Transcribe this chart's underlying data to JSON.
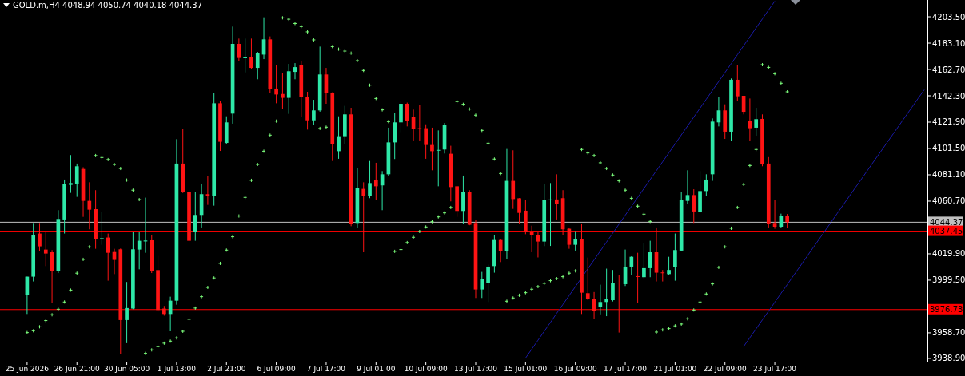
{
  "chart_data": {
    "type": "candlestick",
    "title": "GOLD.m,H4  4048.94 4050.74 4040.18 4044.37",
    "categories": [
      "25 Jun 2026",
      null,
      null,
      null,
      null,
      null,
      null,
      null,
      "26 Jun 21:00",
      null,
      null,
      null,
      null,
      null,
      null,
      null,
      "30 Jun 05:00",
      null,
      null,
      null,
      null,
      null,
      null,
      null,
      "1 Jul 13:00",
      null,
      null,
      null,
      null,
      null,
      null,
      null,
      "2 Jul 21:00",
      null,
      null,
      null,
      null,
      null,
      null,
      null,
      "6 Jul 09:00",
      null,
      null,
      null,
      null,
      null,
      null,
      null,
      "7 Jul 17:00",
      null,
      null,
      null,
      null,
      null,
      null,
      null,
      "9 Jul 01:00",
      null,
      null,
      null,
      null,
      null,
      null,
      null,
      "10 Jul 09:00",
      null,
      null,
      null,
      null,
      null,
      null,
      null,
      "13 Jul 17:00",
      null,
      null,
      null,
      null,
      null,
      null,
      null,
      "15 Jul 01:00",
      null,
      null,
      null,
      null,
      null,
      null,
      null,
      "16 Jul 09:00",
      null,
      null,
      null,
      null,
      null,
      null,
      null,
      "17 Jul 17:00",
      null,
      null,
      null,
      null,
      null,
      null,
      null,
      "21 Jul 01:00",
      null,
      null,
      null,
      null,
      null,
      null,
      null,
      "22 Jul 09:00",
      null,
      null,
      null,
      null,
      null,
      null,
      null,
      "23 Jul 17:00",
      null,
      null,
      null,
      null,
      null,
      null,
      null,
      null,
      null,
      null,
      null,
      null,
      null,
      null,
      null,
      null,
      null,
      null,
      null,
      null,
      null,
      null,
      null,
      null
    ],
    "ylim": [
      3936.4,
      4216.5
    ],
    "yticks": [
      {
        "value": 3938.9,
        "label": "3938.90"
      },
      {
        "value": 3958.7,
        "label": "3958.70"
      },
      {
        "value": 3999.5,
        "label": "3999.50"
      },
      {
        "value": 4019.9,
        "label": "4019.90"
      },
      {
        "value": 4060.7,
        "label": "4060.70"
      },
      {
        "value": 4081.1,
        "label": "4081.10"
      },
      {
        "value": 4101.5,
        "label": "4101.50"
      },
      {
        "value": 4121.9,
        "label": "4121.90"
      },
      {
        "value": 4142.3,
        "label": "4142.30"
      },
      {
        "value": 4162.7,
        "label": "4162.70"
      },
      {
        "value": 4183.1,
        "label": "4183.10"
      },
      {
        "value": 4203.5,
        "label": "4203.50"
      }
    ],
    "grid": false,
    "ref_lines": [
      {
        "axis": "y",
        "value": 4044.37,
        "label": "4044.37",
        "color": "#c0c0c0"
      },
      {
        "axis": "y",
        "value": 4037.45,
        "label": "4037.45",
        "color": "#ff0000"
      },
      {
        "axis": "y",
        "value": 3976.73,
        "label": "3976.73",
        "color": "#ff0000"
      }
    ],
    "series": [
      {
        "colors": [
          "#2ee8a8",
          "#2ee8a8",
          "#ff1414",
          "#ff1414",
          "#ff1414",
          "#2ee8a8",
          "#2ee8a8",
          "#2ee8a8",
          "#2ee8a8",
          "#ff1414",
          "#ff1414",
          "#ff1414",
          "#2ee8a8",
          "#ff1414",
          "#ff1414",
          "#ff1414",
          "#2ee8a8",
          "#2ee8a8",
          "#2ee8a8",
          "#2ee8a8",
          "#ff1414",
          "#ff1414",
          "#ff1414",
          "#2ee8a8",
          "#2ee8a8",
          "#ff1414",
          "#ff1414",
          "#2ee8a8",
          "#2ee8a8",
          "#ff1414",
          "#2ee8a8",
          "#ff1414",
          "#2ee8a8",
          "#2ee8a8",
          "#ff1414",
          "#2ee8a8",
          "#ff1414",
          "#2ee8a8",
          "#2ee8a8",
          "#ff1414",
          "#ff1414",
          "#ff1414",
          "#2ee8a8",
          "#2ee8a8",
          "#ff1414",
          "#ff1414",
          "#2ee8a8",
          "#2ee8a8",
          "#ff1414",
          "#ff1414",
          "#2ee8a8",
          "#2ee8a8",
          "#ff1414",
          "#2ee8a8",
          "#ff1414",
          "#2ee8a8",
          "#ff1414",
          "#2ee8a8",
          "#2ee8a8",
          "#2ee8a8",
          "#2ee8a8",
          "#ff1414",
          "#ff1414",
          "#ff1414",
          "#ff1414",
          "#ff1414",
          "#2ee8a8",
          "#2ee8a8",
          "#ff1414",
          "#ff1414",
          "#2ee8a8",
          "#ff1414",
          "#ff1414",
          "#2ee8a8",
          "#2ee8a8",
          "#2ee8a8",
          "#ff1414",
          "#2ee8a8",
          "#ff1414",
          "#ff1414",
          "#ff1414",
          "#ff1414",
          "#ff1414",
          "#2ee8a8",
          "#2ee8a8",
          "#ff1414",
          "#ff1414",
          "#ff1414",
          "#2ee8a8",
          "#ff1414",
          "#ff1414",
          "#ff1414",
          "#2ee8a8",
          "#2ee8a8",
          "#2ee8a8",
          "#ff1414",
          "#2ee8a8",
          "#2ee8a8",
          "#ff1414",
          "#2ee8a8",
          "#2ee8a8",
          "#ff1414",
          "#ff1414",
          "#2ee8a8",
          "#2ee8a8",
          "#2ee8a8",
          "#2ee8a8",
          "#ff1414",
          "#2ee8a8",
          "#2ee8a8",
          "#2ee8a8",
          "#2ee8a8",
          "#ff1414",
          "#2ee8a8",
          "#ff1414",
          "#ff1414",
          "#ff1414",
          "#2ee8a8",
          "#ff1414",
          "#ff1414",
          "#ff1414",
          "#2ee8a8",
          "#ff1414",
          null,
          null,
          null,
          null,
          null,
          null,
          null,
          null,
          null,
          null,
          null,
          null,
          null,
          null,
          null,
          null,
          null,
          null,
          null,
          null,
          null,
          null
        ],
        "ohlc": [
          [
            3987.8,
            4002.2,
            3973.3,
            4002.2
          ],
          [
            4002.2,
            4043.8,
            3998.5,
            4034.7
          ],
          [
            4035.6,
            4043.8,
            4021.8,
            4025.7
          ],
          [
            4023.2,
            4036.8,
            4010.4,
            4020.1
          ],
          [
            4021.1,
            4022.8,
            3982.0,
            4006.7
          ],
          [
            4006.7,
            4053.7,
            4005.0,
            4046.9
          ],
          [
            4046.5,
            4077.4,
            4035.6,
            4073.7
          ],
          [
            4073.3,
            4096.4,
            4067.1,
            4074.7
          ],
          [
            4074.3,
            4089.8,
            4064.0,
            4087.7
          ],
          [
            4085.6,
            4087.0,
            4048.5,
            4060.9
          ],
          [
            4060.9,
            4075.3,
            4038.9,
            4054.1
          ],
          [
            4054.5,
            4069.2,
            4023.8,
            4031.0
          ],
          [
            4031.0,
            4052.3,
            4026.9,
            4032.0
          ],
          [
            4032.5,
            4035.6,
            3999.1,
            4020.7
          ],
          [
            4021.3,
            4023.8,
            4004.2,
            4015.2
          ],
          [
            4023.4,
            4024.0,
            3942.4,
            3968.6
          ],
          [
            3968.6,
            3998.1,
            3950.7,
            3977.9
          ],
          [
            3977.5,
            4036.8,
            3977.0,
            4023.4
          ],
          [
            4023.2,
            4036.8,
            4007.9,
            4030.0
          ],
          [
            4029.5,
            4063.4,
            4020.7,
            4030.2
          ],
          [
            4030.4,
            4034.1,
            4005.0,
            4006.3
          ],
          [
            4007.3,
            4018.3,
            3975.0,
            3976.4
          ],
          [
            3977.5,
            3979.5,
            3972.0,
            3973.3
          ],
          [
            3973.3,
            3986.7,
            3959.9,
            3983.6
          ],
          [
            3983.6,
            4108.7,
            3980.5,
            4089.8
          ],
          [
            4089.8,
            4116.5,
            4067.0,
            4067.7
          ],
          [
            4068.1,
            4070.2,
            4027.9,
            4030.0
          ],
          [
            4036.6,
            4068.1,
            4030.0,
            4050.0
          ],
          [
            4050.0,
            4074.3,
            4040.3,
            4066.1
          ],
          [
            4066.1,
            4079.9,
            4057.8,
            4064.6
          ],
          [
            4064.6,
            4144.4,
            4057.2,
            4136.5
          ],
          [
            4136.5,
            4138.2,
            4099.6,
            4106.7
          ],
          [
            4105.8,
            4126.4,
            4105.0,
            4121.7
          ],
          [
            4128.5,
            4195.9,
            4120.7,
            4182.5
          ],
          [
            4182.5,
            4186.6,
            4169.1,
            4171.6
          ],
          [
            4171.5,
            4186.6,
            4160.4,
            4172.0
          ],
          [
            4172.2,
            4186.6,
            4163.0,
            4163.9
          ],
          [
            4163.9,
            4176.3,
            4155.1,
            4175.3
          ],
          [
            4174.2,
            4203.1,
            4170.7,
            4186.0
          ],
          [
            4186.0,
            4188.3,
            4144.4,
            4147.5
          ],
          [
            4147.9,
            4166.4,
            4136.5,
            4143.3
          ],
          [
            4143.7,
            4160.2,
            4132.0,
            4140.7
          ],
          [
            4140.7,
            4167.0,
            4128.3,
            4161.3
          ],
          [
            4160.8,
            4167.6,
            4155.1,
            4164.5
          ],
          [
            4166.4,
            4169.1,
            4125.8,
            4141.3
          ],
          [
            4141.7,
            4145.4,
            4116.1,
            4123.3
          ],
          [
            4123.3,
            4139.2,
            4119.6,
            4131.0
          ],
          [
            4131.0,
            4180.4,
            4130.0,
            4158.8
          ],
          [
            4158.8,
            4163.9,
            4136.1,
            4144.4
          ],
          [
            4144.8,
            4145.0,
            4091.8,
            4104.6
          ],
          [
            4099.4,
            4126.4,
            4093.5,
            4111.0
          ],
          [
            4111.0,
            4134.5,
            4105.2,
            4127.9
          ],
          [
            4127.9,
            4133.0,
            4041.3,
            4042.8
          ],
          [
            4043.8,
            4086.3,
            4039.7,
            4070.6
          ],
          [
            4070.2,
            4075.3,
            4021.1,
            4065.0
          ],
          [
            4065.0,
            4091.8,
            4063.0,
            4074.7
          ],
          [
            4077.0,
            4090.4,
            4061.5,
            4072.2
          ],
          [
            4072.9,
            4084.0,
            4053.7,
            4081.5
          ],
          [
            4081.5,
            4117.6,
            4080.0,
            4106.2
          ],
          [
            4106.2,
            4129.3,
            4093.3,
            4121.7
          ],
          [
            4121.7,
            4138.2,
            4114.1,
            4136.1
          ],
          [
            4136.1,
            4137.0,
            4118.6,
            4122.7
          ],
          [
            4125.8,
            4131.6,
            4107.7,
            4116.5
          ],
          [
            4117.2,
            4135.1,
            4107.7,
            4116.8
          ],
          [
            4117.2,
            4120.2,
            4093.5,
            4104.2
          ],
          [
            4104.2,
            4117.6,
            4084.6,
            4099.4
          ],
          [
            4099.8,
            4115.5,
            4072.2,
            4100.4
          ],
          [
            4100.7,
            4121.2,
            4097.6,
            4120.0
          ],
          [
            4097.4,
            4103.6,
            4060.5,
            4071.6
          ],
          [
            4072.2,
            4072.5,
            4048.5,
            4053.1
          ],
          [
            4053.1,
            4080.5,
            4043.4,
            4068.1
          ],
          [
            4068.1,
            4069.2,
            4042.0,
            4042.4
          ],
          [
            4043.8,
            4045.9,
            3985.7,
            3992.3
          ],
          [
            3992.3,
            4005.9,
            3985.7,
            4000.5
          ],
          [
            3997.6,
            4011.5,
            3982.6,
            4010.0
          ],
          [
            4010.4,
            4034.1,
            4005.3,
            4030.6
          ],
          [
            4030.6,
            4031.0,
            4013.5,
            4021.8
          ],
          [
            4021.8,
            4101.1,
            4015.6,
            4076.4
          ],
          [
            4076.4,
            4100.1,
            4054.7,
            4062.3
          ],
          [
            4062.9,
            4063.0,
            4043.4,
            4051.6
          ],
          [
            4053.3,
            4061.9,
            4035.1,
            4037.2
          ],
          [
            4037.2,
            4041.7,
            4021.1,
            4034.5
          ],
          [
            4034.7,
            4037.2,
            4017.1,
            4029.4
          ],
          [
            4029.4,
            4074.3,
            4025.9,
            4061.5
          ],
          [
            4061.5,
            4074.7,
            4026.0,
            4062.0
          ],
          [
            4062.0,
            4081.5,
            4046.5,
            4058.8
          ],
          [
            4063.0,
            4069.2,
            4034.1,
            4038.9
          ],
          [
            4039.3,
            4040.3,
            4023.8,
            4026.9
          ],
          [
            4026.9,
            4037.5,
            4022.4,
            4031.4
          ],
          [
            4031.4,
            4043.4,
            3973.3,
            3989.8
          ],
          [
            3989.4,
            4017.0,
            3984.0,
            3984.7
          ],
          [
            3984.7,
            3990.3,
            3969.2,
            3975.4
          ],
          [
            3978.6,
            3996.0,
            3973.0,
            3982.6
          ],
          [
            3982.6,
            4008.4,
            3971.6,
            3984.7
          ],
          [
            3984.0,
            4007.4,
            3983.0,
            3997.6
          ],
          [
            3997.6,
            4003.2,
            3958.9,
            3997.0
          ],
          [
            3996.4,
            4023.2,
            3995.0,
            4010.0
          ],
          [
            4010.0,
            4018.0,
            4003.2,
            4017.6
          ],
          [
            4002.6,
            4020.7,
            3981.6,
            4002.0
          ],
          [
            4001.8,
            4027.9,
            4001.0,
            4008.8
          ],
          [
            4008.8,
            4030.0,
            4001.8,
            4021.1
          ],
          [
            4021.1,
            4040.3,
            3998.5,
            4005.3
          ],
          [
            4005.5,
            4007.4,
            3998.5,
            4005.0
          ],
          [
            4004.2,
            4017.6,
            4003.2,
            4007.4
          ],
          [
            4009.4,
            4035.6,
            3999.1,
            4022.8
          ],
          [
            4022.4,
            4068.1,
            4022.0,
            4061.5
          ],
          [
            4060.9,
            4084.6,
            4058.8,
            4065.4
          ],
          [
            4065.4,
            4069.9,
            4043.8,
            4052.7
          ],
          [
            4052.2,
            4084.0,
            4051.6,
            4068.5
          ],
          [
            4068.5,
            4081.5,
            4064.4,
            4077.4
          ],
          [
            4081.5,
            4124.8,
            4076.4,
            4122.3
          ],
          [
            4121.7,
            4141.3,
            4118.6,
            4131.0
          ],
          [
            4131.0,
            4135.7,
            4108.9,
            4114.5
          ],
          [
            4114.5,
            4155.7,
            4107.3,
            4154.7
          ],
          [
            4154.7,
            4166.4,
            4138.6,
            4141.9
          ],
          [
            4142.3,
            4142.3,
            4127.9,
            4129.9
          ],
          [
            4122.7,
            4140.2,
            4107.3,
            4117.2
          ],
          [
            4117.6,
            4133.0,
            4111.4,
            4124.2
          ],
          [
            4124.4,
            4127.9,
            4087.7,
            4089.1
          ],
          [
            4089.8,
            4094.8,
            4040.3,
            4043.4
          ],
          [
            4043.8,
            4061.5,
            4039.3,
            4040.9
          ],
          [
            4040.9,
            4051.0,
            4039.7,
            4049.2
          ],
          [
            4048.94,
            4050.74,
            4040.18,
            4044.37
          ],
          null,
          null,
          null,
          null,
          null,
          null,
          null,
          null,
          null,
          null,
          null,
          null,
          null,
          null,
          null,
          null,
          null,
          null,
          null,
          null,
          null,
          null
        ]
      },
      {
        "type": "scatter",
        "color": "#7dff7d",
        "marker": "cross",
        "values": [
          3958.9,
          3960.3,
          3963.4,
          3968.2,
          3972.7,
          3977.0,
          3982.6,
          3991.8,
          4004.9,
          4015.6,
          4025.3,
          4096.0,
          4094.5,
          4092.9,
          4089.1,
          4086.0,
          4077.0,
          4069.2,
          4061.9,
          3942.8,
          3945.5,
          3948.0,
          3950.7,
          3952.3,
          3954.8,
          3959.9,
          3969.2,
          3977.9,
          3986.7,
          3993.9,
          4001.2,
          4012.5,
          4022.8,
          4033.1,
          4049.2,
          4063.6,
          4076.8,
          4089.1,
          4099.4,
          4111.8,
          4122.7,
          4202.7,
          4201.6,
          4198.3,
          4195.9,
          4191.8,
          4185.6,
          4117.0,
          4118.0,
          4180.4,
          4178.4,
          4176.9,
          4175.3,
          4169.5,
          4161.9,
          4150.5,
          4140.2,
          4131.4,
          4122.3,
          4021.8,
          4023.2,
          4028.6,
          4032.7,
          4037.2,
          4040.7,
          4044.8,
          4048.5,
          4051.6,
          4055.8,
          4137.8,
          4135.7,
          4132.0,
          4127.3,
          4115.5,
          4105.6,
          4093.3,
          4082.1,
          3983.2,
          3985.7,
          3987.8,
          3989.8,
          3992.5,
          3994.5,
          3997.0,
          3999.1,
          4000.7,
          4002.2,
          4004.9,
          4006.7,
          4100.7,
          4098.0,
          4096.0,
          4090.4,
          4086.0,
          4080.9,
          4076.4,
          4069.2,
          4062.9,
          4056.8,
          4050.6,
          4045.0,
          3959.3,
          3961.0,
          3962.0,
          3964.1,
          3965.5,
          3969.6,
          3976.4,
          3982.6,
          3988.8,
          3996.6,
          4009.4,
          4025.3,
          4039.7,
          4055.8,
          4073.7,
          4088.3,
          4100.7,
          4166.4,
          4164.3,
          4159.4,
          4152.0,
          4145.4,
          null,
          null,
          null,
          null,
          null,
          null,
          null,
          null,
          null,
          null,
          null,
          null,
          null,
          null,
          null,
          null,
          null,
          null,
          null,
          null,
          null,
          null
        ]
      },
      {
        "type": "line",
        "color": "#1a1aa8",
        "line_style": "solid",
        "values": [
          null,
          null,
          null,
          null,
          null,
          null,
          null,
          null,
          null,
          null,
          null,
          null,
          null,
          null,
          null,
          null,
          null,
          null,
          null,
          null,
          null,
          null,
          null,
          null,
          null,
          null,
          null,
          null,
          null,
          null,
          null,
          null,
          null,
          null,
          null,
          null,
          null,
          null,
          null,
          null,
          null,
          null,
          null,
          null,
          null,
          null,
          null,
          null,
          null,
          null,
          null,
          null,
          null,
          null,
          null,
          null,
          null,
          null,
          null,
          null,
          null,
          null,
          null,
          null,
          null,
          null,
          null,
          null,
          null,
          null,
          null,
          null,
          null,
          null,
          null,
          null,
          null,
          null,
          null,
          null,
          3939.2,
          3946.1,
          3953.0,
          3959.9,
          3966.8,
          3973.8,
          3980.7,
          3987.6,
          3994.5,
          4001.4,
          4008.3,
          4015.2,
          4022.1,
          4029.0,
          4035.9,
          4042.9,
          4049.8,
          4056.7,
          4063.6,
          4070.5,
          4077.4,
          4084.3,
          4091.2,
          4098.1,
          4105.0,
          4112.0,
          4118.9,
          4125.8,
          4132.7,
          4139.6,
          4146.5,
          4153.4,
          4160.3,
          4167.2,
          4174.1,
          4181.1,
          4188.0,
          4194.9,
          4201.8,
          4208.7,
          4215.6,
          null,
          null,
          null,
          null,
          null,
          null,
          null,
          null,
          null,
          null,
          null,
          null,
          null,
          null,
          null,
          null,
          null,
          null,
          null,
          null,
          null,
          null,
          null,
          null
        ]
      },
      {
        "type": "line",
        "color": "#1a1aa8",
        "line_style": "solid",
        "values": [
          null,
          null,
          null,
          null,
          null,
          null,
          null,
          null,
          null,
          null,
          null,
          null,
          null,
          null,
          null,
          null,
          null,
          null,
          null,
          null,
          null,
          null,
          null,
          null,
          null,
          null,
          null,
          null,
          null,
          null,
          null,
          null,
          null,
          null,
          null,
          null,
          null,
          null,
          null,
          null,
          null,
          null,
          null,
          null,
          null,
          null,
          null,
          null,
          null,
          null,
          null,
          null,
          null,
          null,
          null,
          null,
          null,
          null,
          null,
          null,
          null,
          null,
          null,
          null,
          null,
          null,
          null,
          null,
          null,
          null,
          null,
          null,
          null,
          null,
          null,
          null,
          null,
          null,
          null,
          null,
          null,
          null,
          null,
          null,
          null,
          null,
          null,
          null,
          null,
          null,
          null,
          null,
          null,
          null,
          null,
          null,
          null,
          null,
          null,
          null,
          null,
          null,
          null,
          null,
          null,
          null,
          null,
          null,
          null,
          null,
          null,
          null,
          null,
          null,
          null,
          3948.1,
          3955.0,
          3961.8,
          3968.7,
          3975.5,
          3982.4,
          3989.3,
          3996.1,
          4003.0,
          4009.8,
          4016.7,
          4023.6,
          4030.4,
          4037.3,
          4044.1,
          4051.0,
          4057.9,
          4064.7,
          4071.6,
          4078.4,
          4085.3,
          4092.2,
          4099.0,
          4105.9,
          4112.7,
          4119.6,
          4126.5,
          4133.3,
          4140.2,
          4147.0
        ]
      }
    ]
  }
}
